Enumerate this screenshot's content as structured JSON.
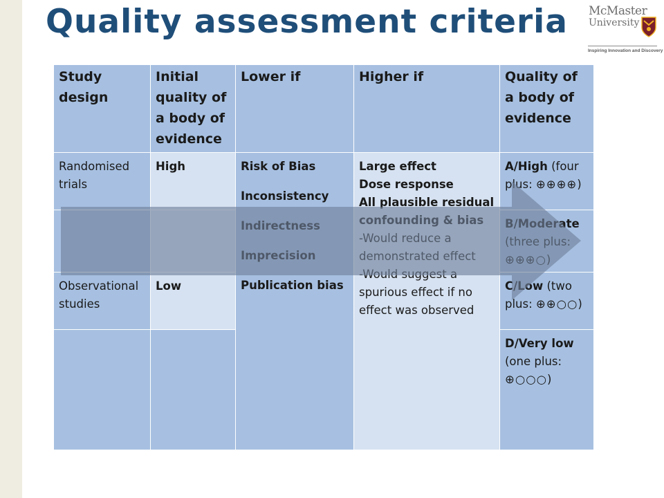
{
  "title": "Quality assessment criteria",
  "logo": {
    "name_line1": "McMaster",
    "name_line2": "University",
    "tagline": "Inspiring Innovation and Discovery",
    "crest_icon": "mcmaster-crest-icon",
    "crest_colors": {
      "shield": "#7a1f2b",
      "gold": "#f0b323"
    }
  },
  "table": {
    "headers": [
      "Study design",
      "Initial quality of a body of evidence",
      "Lower if",
      "Higher if",
      "Quality of a body of evidence"
    ],
    "rows": [
      {
        "design": "Randomised trials",
        "initial": "High"
      },
      {
        "design": "",
        "initial": ""
      },
      {
        "design": "Observational studies",
        "initial": "Low"
      },
      {
        "design": "",
        "initial": ""
      }
    ],
    "lower_if": [
      "Risk of Bias",
      "Inconsistency",
      "Indirectness",
      "Imprecision",
      "Publication bias"
    ],
    "higher_if": {
      "bold_items": [
        "Large effect",
        "Dose response",
        "All plausible residual confounding & bias"
      ],
      "plain_items": [
        "-Would reduce a demonstrated effect",
        "-Would suggest a spurious effect if no effect was observed"
      ]
    },
    "quality_levels": [
      {
        "grade": "A/High",
        "note": " (four plus: ",
        "symbols": "⊕⊕⊕⊕",
        "close": ")"
      },
      {
        "grade": "B/Moderate",
        "note": " (three plus: ",
        "symbols": "⊕⊕⊕○",
        "close": ")"
      },
      {
        "grade": "C/Low",
        "note": " (two plus: ",
        "symbols": "⊕⊕○○",
        "close": ")"
      },
      {
        "grade": "D/Very low",
        "note": " (one plus: ",
        "symbols": "⊕○○○",
        "close": ")"
      }
    ]
  },
  "colors": {
    "title": "#1f4e79",
    "cell_dark": "#a7c0e1",
    "cell_light": "#d6e2f1",
    "arrow": "#7f8ea6",
    "side_strip": "#efece1"
  }
}
